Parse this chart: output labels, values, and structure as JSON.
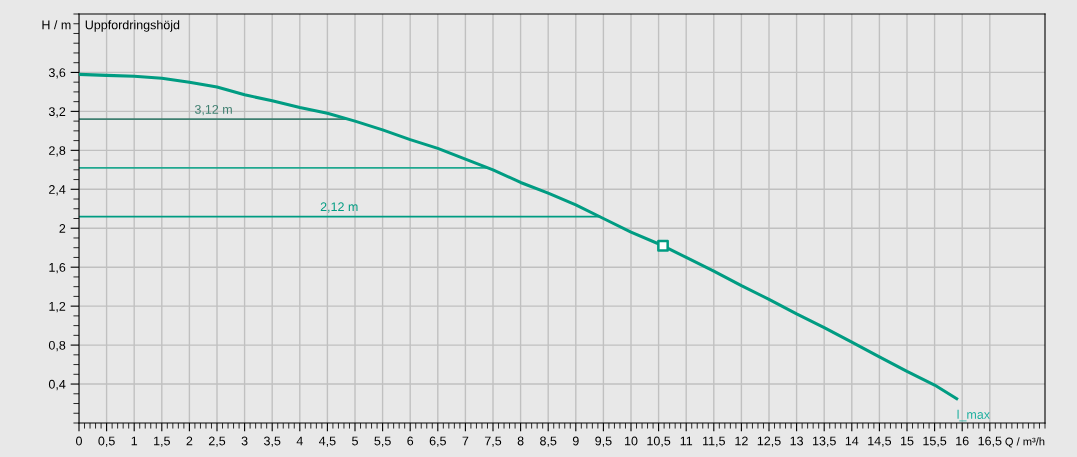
{
  "chart_data": {
    "type": "line",
    "title": "Uppfordringshöjd",
    "xlabel": "Q / m³/h",
    "ylabel": "H / m",
    "x": [
      0,
      0.5,
      1,
      1.5,
      2,
      2.5,
      3,
      3.5,
      4,
      4.5,
      5,
      5.5,
      6,
      6.5,
      7,
      7.5,
      8,
      8.5,
      9,
      9.5,
      10,
      10.58,
      11,
      11.5,
      12,
      12.5,
      13,
      13.5,
      14,
      14.5,
      15,
      15.5,
      15.9
    ],
    "series": [
      {
        "color": "#009c82",
        "marker": "none",
        "values": [
          3.58,
          3.57,
          3.56,
          3.54,
          3.5,
          3.45,
          3.37,
          3.31,
          3.24,
          3.18,
          3.1,
          3.01,
          2.91,
          2.82,
          2.71,
          2.6,
          2.47,
          2.36,
          2.24,
          2.1,
          1.96,
          1.82,
          1.7,
          1.56,
          1.41,
          1.27,
          1.12,
          0.98,
          0.83,
          0.68,
          0.53,
          0.39,
          0.25
        ]
      },
      {
        "type": "scatter",
        "color": "#009c82",
        "marker": "square",
        "x": [
          10.58
        ],
        "values": [
          1.82
        ]
      }
    ],
    "ref_lines": [
      {
        "axis": "y",
        "value": 3.12,
        "label": "3,12 m",
        "color": "#3f7f70",
        "line_style": "solid"
      },
      {
        "axis": "y",
        "value": 2.62,
        "label": null,
        "color": "#20a890",
        "line_style": "solid"
      },
      {
        "axis": "y",
        "value": 2.12,
        "label": "2,12 m",
        "color": "#009c82",
        "line_style": "solid"
      }
    ],
    "annotations": [
      {
        "text": "l_max",
        "x": 15.9,
        "y": 0.25
      }
    ],
    "xlim": [
      0,
      17.5
    ],
    "ylim": [
      0,
      4.2
    ],
    "xticks": [
      0,
      {
        "value": 0.5,
        "label": "0,5"
      },
      1,
      {
        "value": 1.5,
        "label": "1,5"
      },
      2,
      {
        "value": 2.5,
        "label": "2,5"
      },
      3,
      {
        "value": 3.5,
        "label": "3,5"
      },
      4,
      {
        "value": 4.5,
        "label": "4,5"
      },
      5,
      {
        "value": 5.5,
        "label": "5,5"
      },
      6,
      {
        "value": 6.5,
        "label": "6,5"
      },
      7,
      {
        "value": 7.5,
        "label": "7,5"
      },
      8,
      {
        "value": 8.5,
        "label": "8,5"
      },
      9,
      {
        "value": 9.5,
        "label": "9,5"
      },
      10,
      {
        "value": 10.5,
        "label": "10,5"
      },
      11,
      {
        "value": 11.5,
        "label": "11,5"
      },
      12,
      {
        "value": 12.5,
        "label": "12,5"
      },
      13,
      {
        "value": 13.5,
        "label": "13,5"
      },
      14,
      {
        "value": 14.5,
        "label": "14,5"
      },
      15,
      {
        "value": 15.5,
        "label": "15,5"
      },
      16,
      {
        "value": 16.5,
        "label": "16,5"
      }
    ],
    "yticks": [
      {
        "value": 0.4,
        "label": "0,4"
      },
      {
        "value": 0.8,
        "label": "0,8"
      },
      {
        "value": 1.2,
        "label": "1,2"
      },
      {
        "value": 1.6,
        "label": "1,6"
      },
      2,
      {
        "value": 2.4,
        "label": "2,4"
      },
      {
        "value": 2.8,
        "label": "2,8"
      },
      {
        "value": 3.2,
        "label": "3,2"
      },
      {
        "value": 3.6,
        "label": "3,6"
      }
    ],
    "grid": true,
    "legend": false
  }
}
